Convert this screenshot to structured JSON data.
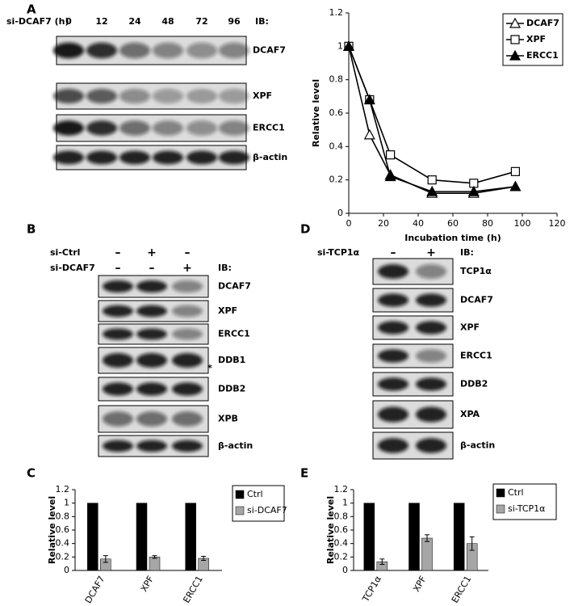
{
  "panel_labels": [
    "A",
    "B",
    "C",
    "D",
    "E"
  ],
  "blot_a": {
    "row_label": "si-DCAF7 (h)",
    "lanes": [
      "0",
      "12",
      "24",
      "48",
      "72",
      "96"
    ],
    "ib": "IB:",
    "proteins": [
      "DCAF7",
      "XPF",
      "ERCC1",
      "β-actin"
    ]
  },
  "blot_b": {
    "conditions": [
      {
        "label": "si-Ctrl",
        "signs": [
          "–",
          "+",
          "–"
        ]
      },
      {
        "label": "si-DCAF7",
        "signs": [
          "–",
          "–",
          "+"
        ]
      }
    ],
    "ib": "IB:",
    "proteins": [
      "DCAF7",
      "XPF",
      "ERCC1",
      "DDB1",
      "DDB2",
      "XPB",
      "β-actin"
    ],
    "asterisk": "*"
  },
  "blot_d": {
    "conditions": [
      {
        "label": "si-TCP1α",
        "signs": [
          "–",
          "+"
        ]
      }
    ],
    "ib": "IB:",
    "proteins": [
      "TCP1α",
      "DCAF7",
      "XPF",
      "ERCC1",
      "DDB2",
      "XPA",
      "β-actin"
    ]
  },
  "chart_data": [
    {
      "type": "line",
      "x_label": "Incubation time (h)",
      "y_label": "Relative level",
      "x": [
        0,
        12,
        24,
        48,
        72,
        96
      ],
      "series": [
        {
          "name": "DCAF7",
          "color": "#000000",
          "marker": "triangle-open",
          "values": [
            1,
            0.47,
            0.23,
            0.12,
            0.12,
            0.16
          ]
        },
        {
          "name": "XPF",
          "color": "#000000",
          "marker": "square-open",
          "values": [
            1,
            0.68,
            0.35,
            0.2,
            0.18,
            0.25
          ]
        },
        {
          "name": "ERCC1",
          "color": "#000000",
          "marker": "triangle-filled",
          "values": [
            1,
            0.68,
            0.22,
            0.13,
            0.13,
            0.16
          ]
        }
      ],
      "xlim": [
        0,
        120
      ],
      "xticks": [
        0,
        20,
        40,
        60,
        80,
        100,
        120
      ],
      "ylim": [
        0,
        1.2
      ],
      "yticks": [
        0,
        0.2,
        0.4,
        0.6,
        0.8,
        1,
        1.2
      ],
      "grid": false,
      "legend": "upper right"
    },
    {
      "type": "bar",
      "y_label": "Relative level",
      "categories": [
        "DCAF7",
        "XPF",
        "ERCC1"
      ],
      "series": [
        {
          "name": "Ctrl",
          "color": "#000000",
          "values": [
            1,
            1,
            1
          ]
        },
        {
          "name": "si-DCAF7",
          "color": "#a6a6a6",
          "values": [
            0.17,
            0.2,
            0.18
          ],
          "errors": [
            0.05,
            0.02,
            0.03
          ]
        }
      ],
      "ylim": [
        0,
        1.2
      ],
      "yticks": [
        0,
        0.2,
        0.4,
        0.6,
        0.8,
        1,
        1.2
      ],
      "grid": false,
      "legend": "upper right"
    },
    {
      "type": "bar",
      "y_label": "Relative level",
      "categories": [
        "TCP1α",
        "XPF",
        "ERCC1"
      ],
      "series": [
        {
          "name": "Ctrl",
          "color": "#000000",
          "values": [
            1,
            1,
            1
          ]
        },
        {
          "name": "si-TCP1α",
          "color": "#a6a6a6",
          "values": [
            0.13,
            0.48,
            0.4
          ],
          "errors": [
            0.04,
            0.05,
            0.1
          ]
        }
      ],
      "ylim": [
        0,
        1.2
      ],
      "yticks": [
        0,
        0.2,
        0.4,
        0.6,
        0.8,
        1,
        1.2
      ],
      "grid": false,
      "legend": "upper right"
    }
  ]
}
